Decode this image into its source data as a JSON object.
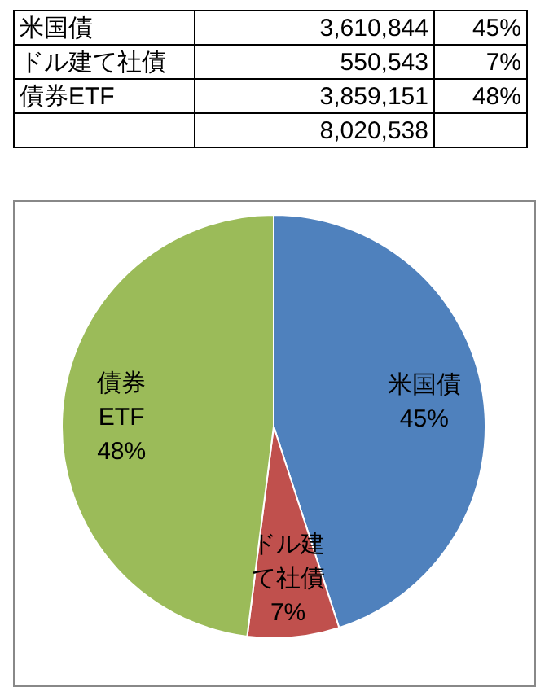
{
  "chart_data": {
    "type": "pie",
    "categories": [
      "米国債",
      "ドル建て社債",
      "債券ETF"
    ],
    "values": [
      45,
      7,
      48
    ],
    "colors": [
      "#4f81bd",
      "#c0504d",
      "#9bbb59"
    ],
    "value_labels": [
      "45%",
      "7%",
      "48%"
    ],
    "annotations": [
      "3,610,844",
      "550,543",
      "3,859,151"
    ],
    "totals": [
      "8,020,538"
    ]
  }
}
